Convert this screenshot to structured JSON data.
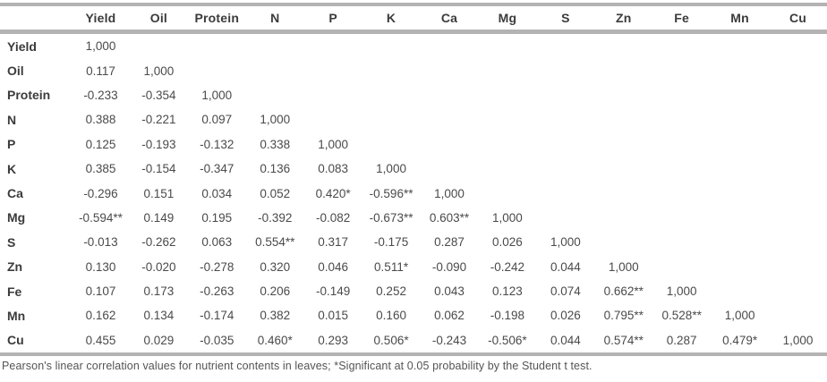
{
  "colors": {
    "rule_bar": "#b3b3b3",
    "header_text": "#3b3b3b",
    "body_text": "#4a4a4a",
    "footnote_text": "#545454"
  },
  "table": {
    "corner_label": "",
    "columns": [
      "Yield",
      "Oil",
      "Protein",
      "N",
      "P",
      "K",
      "Ca",
      "Mg",
      "S",
      "Zn",
      "Fe",
      "Mn",
      "Cu"
    ],
    "rows": [
      {
        "label": "Yield",
        "values": [
          "1,000",
          "",
          "",
          "",
          "",
          "",
          "",
          "",
          "",
          "",
          "",
          "",
          ""
        ]
      },
      {
        "label": "Oil",
        "values": [
          "0.117",
          "1,000",
          "",
          "",
          "",
          "",
          "",
          "",
          "",
          "",
          "",
          "",
          ""
        ]
      },
      {
        "label": "Protein",
        "values": [
          "-0.233",
          "-0.354",
          "1,000",
          "",
          "",
          "",
          "",
          "",
          "",
          "",
          "",
          "",
          ""
        ]
      },
      {
        "label": "N",
        "values": [
          "0.388",
          "-0.221",
          "0.097",
          "1,000",
          "",
          "",
          "",
          "",
          "",
          "",
          "",
          "",
          ""
        ]
      },
      {
        "label": "P",
        "values": [
          "0.125",
          "-0.193",
          "-0.132",
          "0.338",
          "1,000",
          "",
          "",
          "",
          "",
          "",
          "",
          "",
          ""
        ]
      },
      {
        "label": "K",
        "values": [
          "0.385",
          "-0.154",
          "-0.347",
          "0.136",
          "0.083",
          "1,000",
          "",
          "",
          "",
          "",
          "",
          "",
          ""
        ]
      },
      {
        "label": "Ca",
        "values": [
          "-0.296",
          "0.151",
          "0.034",
          "0.052",
          "0.420*",
          "-0.596**",
          "1,000",
          "",
          "",
          "",
          "",
          "",
          ""
        ]
      },
      {
        "label": "Mg",
        "values": [
          "-0.594**",
          "0.149",
          "0.195",
          "-0.392",
          "-0.082",
          "-0.673**",
          "0.603**",
          "1,000",
          "",
          "",
          "",
          "",
          ""
        ]
      },
      {
        "label": "S",
        "values": [
          "-0.013",
          "-0.262",
          "0.063",
          "0.554**",
          "0.317",
          "-0.175",
          "0.287",
          "0.026",
          "1,000",
          "",
          "",
          "",
          ""
        ]
      },
      {
        "label": "Zn",
        "values": [
          "0.130",
          "-0.020",
          "-0.278",
          "0.320",
          "0.046",
          "0.511*",
          "-0.090",
          "-0.242",
          "0.044",
          "1,000",
          "",
          "",
          ""
        ]
      },
      {
        "label": "Fe",
        "values": [
          "0.107",
          "0.173",
          "-0.263",
          "0.206",
          "-0.149",
          "0.252",
          "0.043",
          "0.123",
          "0.074",
          "0.662**",
          "1,000",
          "",
          ""
        ]
      },
      {
        "label": "Mn",
        "values": [
          "0.162",
          "0.134",
          "-0.174",
          "0.382",
          "0.015",
          "0.160",
          "0.062",
          "-0.198",
          "0.026",
          "0.795**",
          "0.528**",
          "1,000",
          ""
        ]
      },
      {
        "label": "Cu",
        "values": [
          "0.455",
          "0.029",
          "-0.035",
          "0.460*",
          "0.293",
          "0.506*",
          "-0.243",
          "-0.506*",
          "0.044",
          "0.574**",
          "0.287",
          "0.479*",
          "1,000"
        ]
      }
    ]
  },
  "footnote": "Pearson's linear correlation values for nutrient contents in leaves; *Significant at 0.05 probability by the Student t test."
}
